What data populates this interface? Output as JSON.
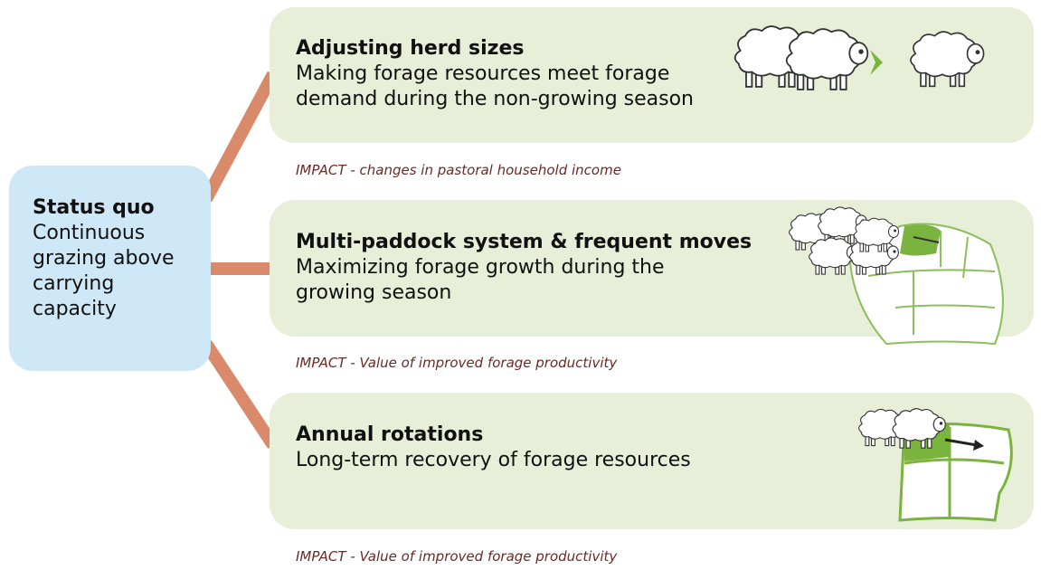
{
  "status_quo": {
    "title": "Status quo",
    "text": "Continuous grazing above carrying capacity"
  },
  "options": [
    {
      "title": "Adjusting herd sizes",
      "text": "Making forage resources meet forage demand during the non-growing season",
      "impact": "IMPACT - changes in pastoral household income"
    },
    {
      "title": "Multi-paddock system & frequent moves",
      "text": "Maximizing forage growth during the growing season",
      "impact": "IMPACT - Value of improved forage productivity"
    },
    {
      "title": "Annual rotations",
      "text": "Long-term recovery of forage resources",
      "impact": "IMPACT - Value of improved forage productivity"
    }
  ]
}
